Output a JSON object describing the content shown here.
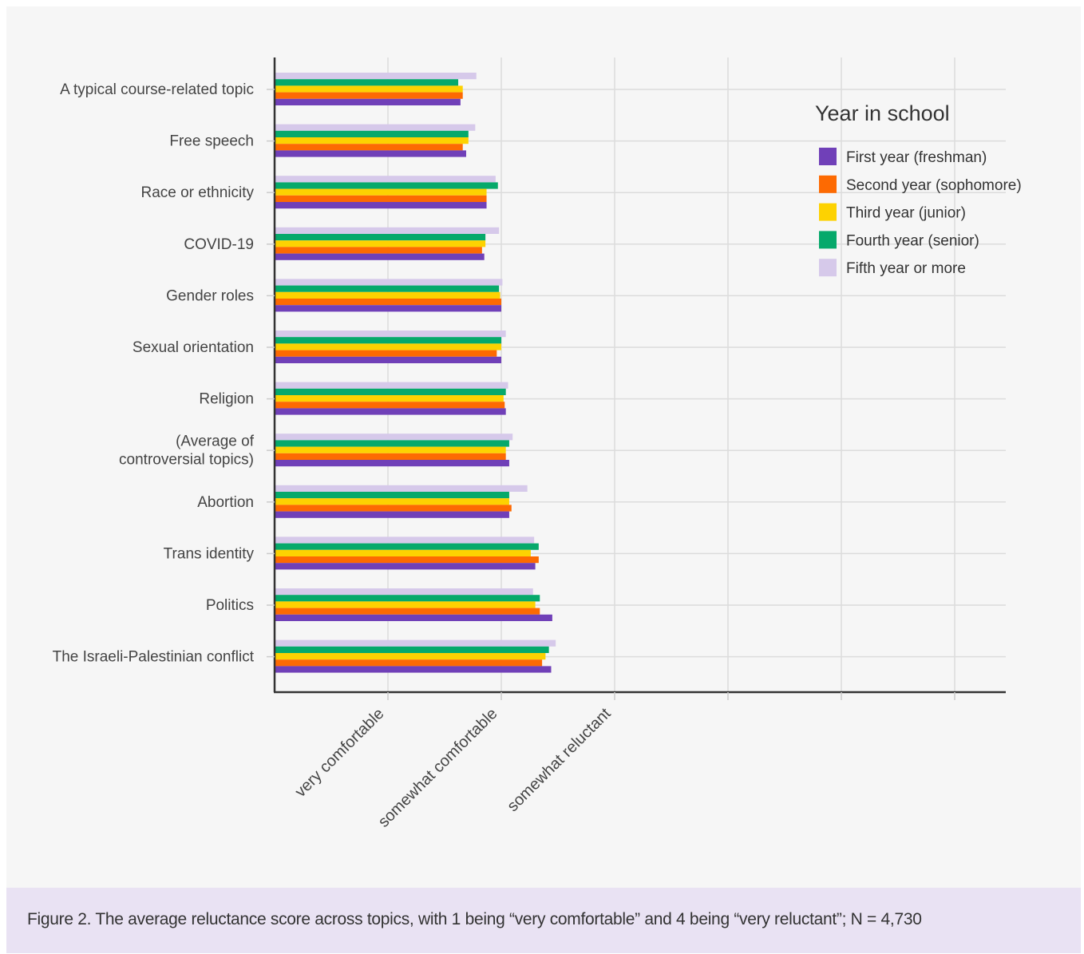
{
  "caption": "Figure 2. The average reluctance score across topics, with 1 being “very comfortable” and 4 being “very reluctant”; N = 4,730",
  "chart_data": {
    "type": "bar",
    "orientation": "horizontal",
    "xlim": [
      0.0,
      4.0
    ],
    "x_ticks": [
      {
        "value": 1,
        "label": "very comfortable"
      },
      {
        "value": 2,
        "label": "somewhat comfortable"
      },
      {
        "value": 3,
        "label": "somewhat reluctant"
      }
    ],
    "grid": true,
    "legend": {
      "title": "Year in school",
      "placement": "top-right"
    },
    "categories": [
      [
        "A typical course-related topic"
      ],
      [
        "Free speech"
      ],
      [
        "Race or ethnicity"
      ],
      [
        "COVID-19"
      ],
      [
        "Gender roles"
      ],
      [
        "Sexual orientation"
      ],
      [
        "Religion"
      ],
      [
        "(Average of",
        "controversial topics)"
      ],
      [
        "Abortion"
      ],
      [
        "Trans identity"
      ],
      [
        "Politics"
      ],
      [
        "The Israeli-Palestinian conflict"
      ]
    ],
    "series": [
      {
        "name": "First year (freshman)",
        "color": "#7040b8",
        "values": [
          1.64,
          1.69,
          1.87,
          1.85,
          2.0,
          2.0,
          2.04,
          2.07,
          2.07,
          2.3,
          2.45,
          2.44
        ]
      },
      {
        "name": "Second year (sophomore)",
        "color": "#fd6a02",
        "values": [
          1.66,
          1.66,
          1.87,
          1.83,
          2.0,
          1.96,
          2.03,
          2.04,
          2.09,
          2.33,
          2.34,
          2.36
        ]
      },
      {
        "name": "Third year (junior)",
        "color": "#fdd201",
        "values": [
          1.66,
          1.71,
          1.87,
          1.86,
          1.99,
          2.0,
          2.02,
          2.04,
          2.07,
          2.26,
          2.3,
          2.39
        ]
      },
      {
        "name": "Fourth year (senior)",
        "color": "#06a96b",
        "values": [
          1.62,
          1.71,
          1.97,
          1.86,
          1.98,
          2.0,
          2.04,
          2.07,
          2.07,
          2.33,
          2.34,
          2.42
        ]
      },
      {
        "name": "Fifth year or more",
        "color": "#d6c9ea",
        "values": [
          1.78,
          1.77,
          1.95,
          1.98,
          2.01,
          2.04,
          2.06,
          2.1,
          2.23,
          2.29,
          2.28,
          2.48
        ]
      }
    ]
  }
}
